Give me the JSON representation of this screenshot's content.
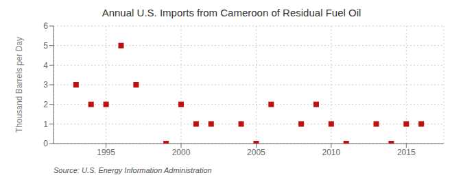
{
  "chart_data": {
    "type": "scatter",
    "title": "Annual U.S. Imports from Cameroon of Residual Fuel Oil",
    "y_label": "Thousand Barrels per Day",
    "source": "Source: U.S. Energy Information Administration",
    "x": [
      1993,
      1994,
      1995,
      1996,
      1997,
      1999,
      2000,
      2001,
      2002,
      2004,
      2005,
      2006,
      2008,
      2009,
      2010,
      2011,
      2013,
      2014,
      2015,
      2016
    ],
    "values": [
      3,
      2,
      2,
      5,
      3,
      0,
      2,
      1,
      1,
      1,
      0,
      2,
      1,
      2,
      1,
      0,
      1,
      0,
      1,
      1
    ],
    "color": "#bb1111",
    "marker": "square",
    "xlim": [
      1991.5,
      2017.5
    ],
    "xticks": [
      1995,
      2000,
      2005,
      2010,
      2015
    ],
    "ylim": [
      0,
      6
    ],
    "yticks": [
      0,
      1,
      2,
      3,
      4,
      5,
      6
    ],
    "grid": true
  }
}
